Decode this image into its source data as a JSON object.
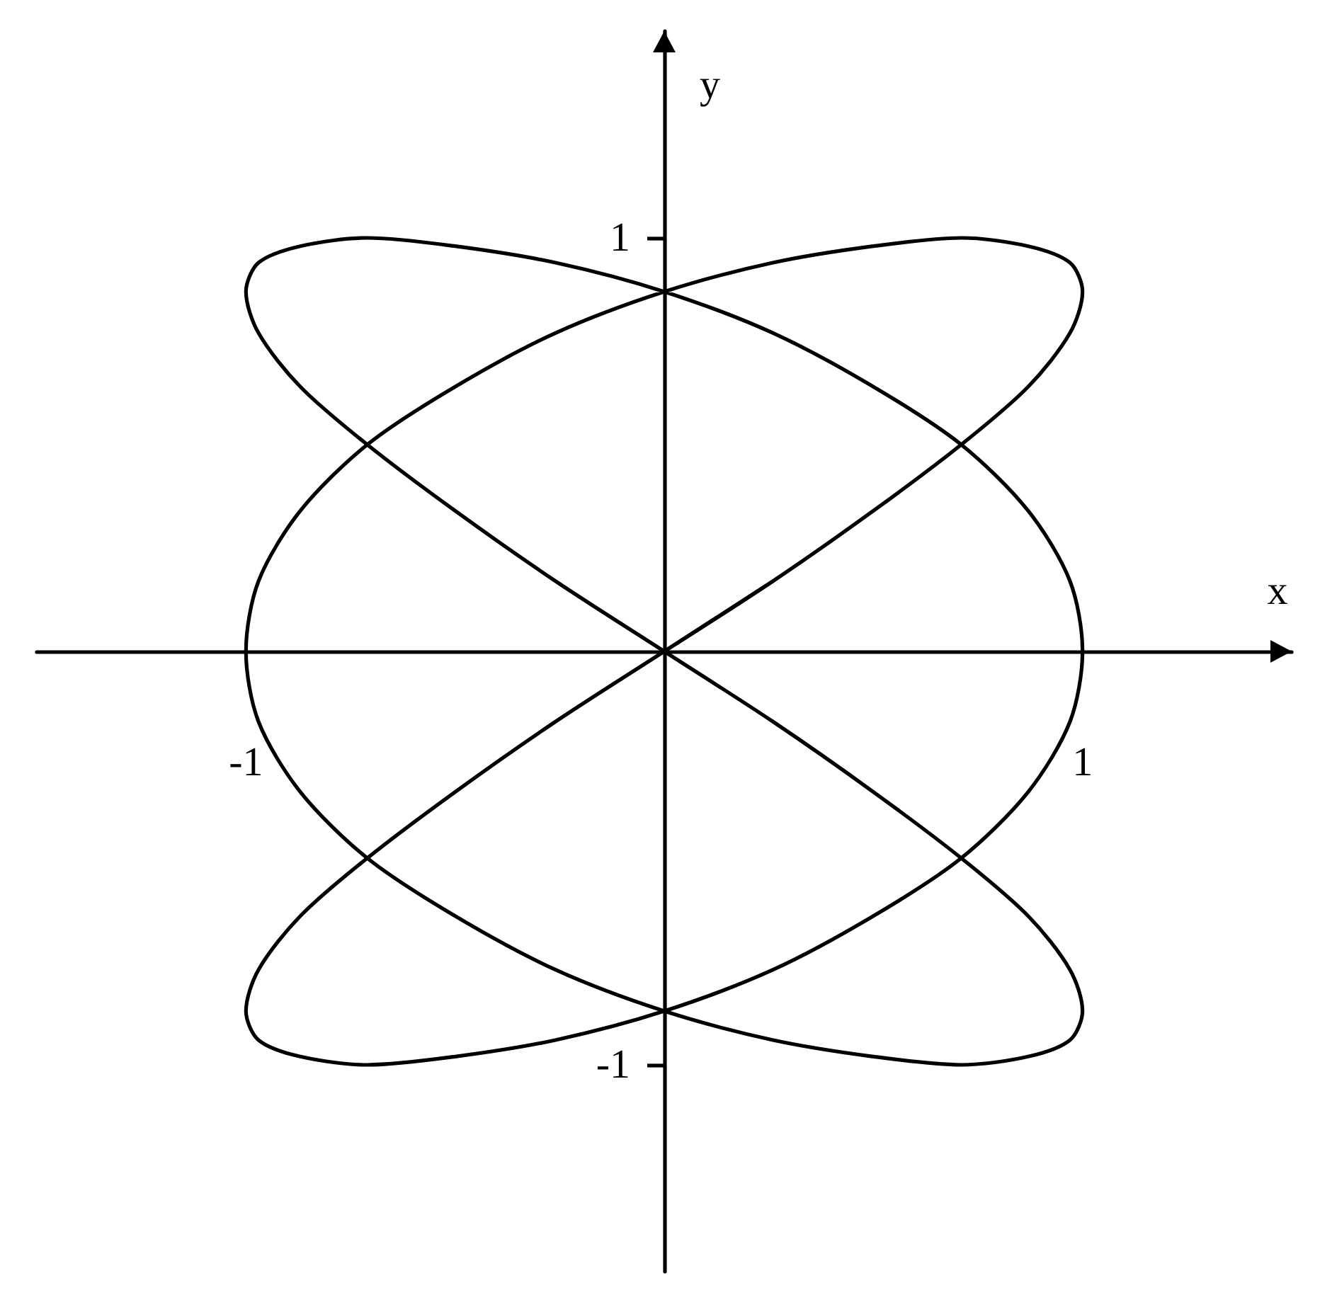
{
  "chart_data": {
    "type": "line",
    "xlabel": "x",
    "ylabel": "y",
    "x": [
      0,
      0.26,
      0.5,
      0.71,
      0.87,
      0.97,
      1,
      0.97,
      0.87,
      0.71,
      0.5,
      0.26,
      0,
      -0.26,
      -0.5,
      -0.71,
      -0.87,
      -0.97,
      -1,
      -0.97,
      -0.87,
      -0.71,
      -0.5,
      -0.26,
      0,
      0.26,
      0.5,
      0.71,
      0.87,
      0.97,
      1,
      0.97,
      0.87,
      0.71,
      0.5,
      0.26,
      0,
      -0.26,
      -0.5,
      -0.71,
      -0.87,
      -0.97,
      -1,
      -0.97,
      -0.87,
      -0.71,
      -0.5,
      -0.26,
      0,
      0.26,
      0.5,
      0.71,
      0.87,
      0.97,
      1,
      0.97,
      0.87,
      0.71,
      0.5,
      0.26,
      0,
      -0.26,
      -0.5,
      -0.71,
      -0.87,
      -0.97,
      -1,
      -0.97,
      -0.87,
      -0.71,
      -0.5,
      -0.26,
      0,
      0.26
    ],
    "series": [
      {
        "color": "#000000",
        "values": [
          0,
          0.17,
          0.34,
          0.5,
          0.64,
          0.77,
          0.87,
          0.94,
          0.98,
          1,
          0.98,
          0.94,
          0.87,
          0.77,
          0.64,
          0.5,
          0.34,
          0.17,
          0,
          -0.17,
          -0.34,
          -0.5,
          -0.64,
          -0.77,
          -0.87,
          -0.94,
          -0.98,
          -1,
          -0.98,
          -0.94,
          -0.87,
          -0.77,
          -0.64,
          -0.5,
          -0.34,
          -0.17,
          0,
          0.17,
          0.34,
          0.5,
          0.64,
          0.77,
          0.87,
          0.94,
          0.98,
          1,
          0.98,
          0.94,
          0.87,
          0.77,
          0.64,
          0.5,
          0.34,
          0.17,
          0,
          -0.17,
          -0.34,
          -0.5,
          -0.64,
          -0.77,
          -0.87,
          -0.94,
          -0.98,
          -1,
          -0.98,
          -0.94,
          -0.87,
          -0.77,
          -0.64,
          -0.5,
          -0.34,
          -0.17,
          0,
          0.17
        ]
      }
    ],
    "xlim": [
      -1.5,
      1.5
    ],
    "ylim": [
      -1.5,
      1.5
    ],
    "xticks": [
      -1,
      1
    ],
    "yticks": [
      -1,
      1
    ],
    "marker": "none",
    "line_style": "solid"
  }
}
